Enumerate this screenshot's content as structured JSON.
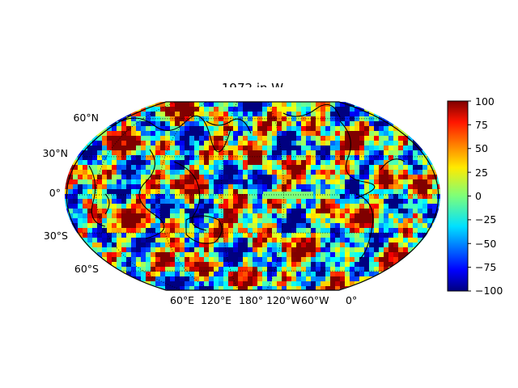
{
  "title": "1972 in W",
  "map": {
    "projection": "Robinson",
    "colormap": "jet",
    "lat_labels": [
      "60°N",
      "30°N",
      "0°",
      "30°S",
      "60°S"
    ],
    "lon_labels": [
      "60°E",
      "120°E",
      "180°",
      "120°W",
      "60°W",
      "0°"
    ],
    "lat_range": [
      -75,
      75
    ],
    "coastlines": true,
    "graticule": "dotted"
  },
  "colorbar": {
    "vmin": -100,
    "vmax": 100,
    "ticks": [
      "100",
      "75",
      "50",
      "25",
      "0",
      "−25",
      "−50",
      "−75",
      "−100"
    ]
  }
}
